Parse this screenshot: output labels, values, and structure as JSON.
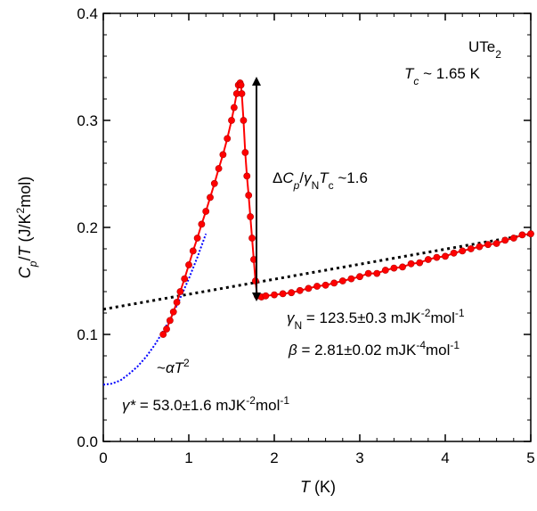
{
  "chart_data": {
    "type": "scatter",
    "xlabel": {
      "var": "T",
      "unit": " (K)"
    },
    "ylabel": {
      "var1": "C",
      "sub1": "p",
      "rest": "/",
      "var2": "T",
      "unit_a": " (J/K",
      "sup": "2",
      "unit_b": "mol)"
    },
    "xlim": [
      0,
      5
    ],
    "ylim": [
      0.0,
      0.4
    ],
    "x_ticks": [
      "0",
      "1",
      "2",
      "3",
      "4",
      "5"
    ],
    "y_ticks": [
      "0.0",
      "0.1",
      "0.2",
      "0.3",
      "0.4"
    ],
    "grid": false,
    "annotations": {
      "material": {
        "main": "UTe",
        "sub": "2"
      },
      "tc": {
        "var": "T",
        "sub": "c",
        "rest": " ~ 1.65 K"
      },
      "jump": {
        "delta": "Δ",
        "c": "C",
        "csub": "p",
        "slash": "/",
        "gamma": "γ",
        "gsub": "N",
        "t": "T",
        "tsub": "c",
        "rest": " ~1.6"
      },
      "gamma_n": {
        "sym": "γ",
        "sub": "N",
        "val": " = 123.5±0.3 mJK",
        "sup1": "-2",
        "mid": "mol",
        "sup2": "-1"
      },
      "beta": {
        "sym": "β",
        "val": " = 2.81±0.02 mJK",
        "sup1": "-4",
        "mid": "mol",
        "sup2": "-1"
      },
      "alpha": {
        "tilde": "~",
        "a": "α",
        "t": "T",
        "sup": "2"
      },
      "gamma_star": {
        "sym": "γ*",
        "val": " = 53.0±1.6 mJK",
        "sup1": "-2",
        "mid": "mol",
        "sup2": "-1"
      }
    },
    "series": [
      {
        "style": "red-markers-line",
        "color": "#ff0000",
        "x": [
          0.7,
          0.74,
          0.78,
          0.82,
          0.86,
          0.9,
          0.95,
          1.0,
          1.05,
          1.1,
          1.15,
          1.2,
          1.25,
          1.3,
          1.35,
          1.4,
          1.45,
          1.5,
          1.53,
          1.56,
          1.58,
          1.6,
          1.61,
          1.62,
          1.64,
          1.66,
          1.68,
          1.7,
          1.72,
          1.74,
          1.76,
          1.78,
          1.8,
          1.85,
          1.9,
          2.0,
          2.1,
          2.2,
          2.3,
          2.4,
          2.5,
          2.6,
          2.7,
          2.8,
          2.9,
          3.0,
          3.1,
          3.2,
          3.3,
          3.4,
          3.5,
          3.6,
          3.7,
          3.8,
          3.9,
          4.0,
          4.1,
          4.2,
          4.3,
          4.4,
          4.5,
          4.6,
          4.7,
          4.8,
          4.9,
          5.0
        ],
        "y": [
          0.1,
          0.105,
          0.113,
          0.121,
          0.13,
          0.14,
          0.152,
          0.165,
          0.178,
          0.19,
          0.203,
          0.215,
          0.228,
          0.241,
          0.255,
          0.268,
          0.283,
          0.3,
          0.312,
          0.325,
          0.333,
          0.335,
          0.333,
          0.325,
          0.3,
          0.27,
          0.248,
          0.23,
          0.21,
          0.19,
          0.17,
          0.15,
          0.136,
          0.135,
          0.136,
          0.137,
          0.138,
          0.139,
          0.141,
          0.143,
          0.145,
          0.146,
          0.148,
          0.15,
          0.152,
          0.154,
          0.157,
          0.157,
          0.16,
          0.162,
          0.163,
          0.166,
          0.167,
          0.17,
          0.172,
          0.173,
          0.176,
          0.178,
          0.18,
          0.182,
          0.184,
          0.185,
          0.188,
          0.19,
          0.193,
          0.194
        ]
      },
      {
        "style": "black-dotted-fit",
        "color": "#000000",
        "x": [
          0,
          5
        ],
        "y": [
          0.1235,
          0.1937
        ]
      },
      {
        "style": "blue-dotted-fit",
        "color": "#0000ff",
        "x": [
          0.0,
          0.1,
          0.2,
          0.3,
          0.4,
          0.5,
          0.6,
          0.7,
          0.8,
          0.9,
          1.0,
          1.1,
          1.2
        ],
        "y": [
          0.053,
          0.054,
          0.057,
          0.063,
          0.07,
          0.079,
          0.09,
          0.103,
          0.117,
          0.134,
          0.152,
          0.172,
          0.194
        ]
      }
    ]
  }
}
